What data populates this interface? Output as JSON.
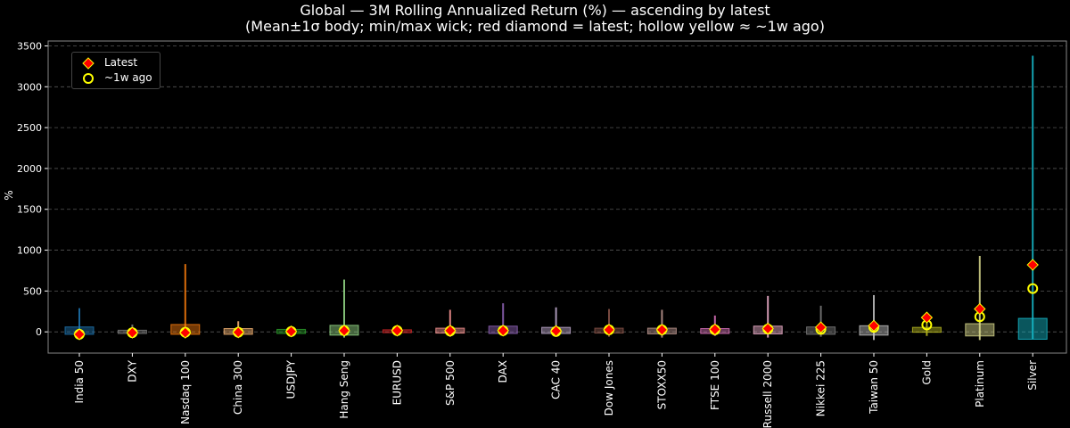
{
  "chart_data": {
    "type": "box",
    "title": "Global — 3M Rolling Annualized Return (%) — ascending by latest",
    "subtitle": "(Mean±1σ body; min/max wick; red diamond = latest; hollow yellow ≈ ~1w ago)",
    "ylabel": "%",
    "ylim": [
      -260,
      3560
    ],
    "yticks": [
      0,
      500,
      1000,
      1500,
      2000,
      2500,
      3000,
      3500
    ],
    "grid": true,
    "legend": {
      "placement": "top-left",
      "entries": [
        "Latest",
        "~1w ago"
      ]
    },
    "categories": [
      "India 50",
      "DXY",
      "Nasdaq 100",
      "China 300",
      "USDJPY",
      "Hang Seng",
      "EURUSD",
      "S&P 500",
      "DAX",
      "CAC 40",
      "Dow Jones",
      "STOXX50",
      "FTSE 100",
      "Russell 2000",
      "Nikkei 225",
      "Taiwan 50",
      "Gold",
      "Platinum",
      "Silver"
    ],
    "colors": [
      "#1f77b4",
      "#7f7f7f",
      "#ff7f0e",
      "#ffbb78",
      "#2ca02c",
      "#98df8a",
      "#d62728",
      "#ff9896",
      "#9467bd",
      "#c5b0d5",
      "#8c564b",
      "#c49c94",
      "#e377c2",
      "#f7b6d2",
      "#7f7f7f",
      "#c7c7c7",
      "#bcbd22",
      "#dbdb8d",
      "#17becf"
    ],
    "box_low": [
      -30,
      -20,
      -30,
      -30,
      -20,
      -40,
      -10,
      -15,
      -20,
      -20,
      -15,
      -25,
      -20,
      -25,
      -30,
      -40,
      -5,
      -50,
      -90
    ],
    "box_high": [
      60,
      20,
      90,
      40,
      30,
      80,
      25,
      45,
      70,
      55,
      45,
      45,
      40,
      70,
      60,
      75,
      55,
      100,
      165
    ],
    "wick_min": [
      -60,
      -50,
      -70,
      -60,
      -40,
      -70,
      -40,
      -60,
      -50,
      -60,
      -60,
      -70,
      -50,
      -70,
      -60,
      -100,
      -50,
      -100,
      -90
    ],
    "wick_max": [
      290,
      90,
      830,
      130,
      70,
      640,
      40,
      270,
      350,
      300,
      280,
      270,
      200,
      440,
      320,
      450,
      190,
      930,
      3380
    ],
    "latest": [
      -30,
      -10,
      -10,
      -5,
      5,
      15,
      15,
      15,
      15,
      10,
      25,
      25,
      30,
      40,
      55,
      75,
      175,
      280,
      820
    ],
    "week_ago": [
      -30,
      -10,
      -5,
      -5,
      5,
      15,
      15,
      10,
      15,
      5,
      25,
      25,
      25,
      35,
      30,
      55,
      85,
      185,
      530
    ],
    "marker_colors": {
      "latest_fill": "#ff0000",
      "latest_edge": "#ffff00",
      "week_edge": "#ffff00"
    }
  }
}
